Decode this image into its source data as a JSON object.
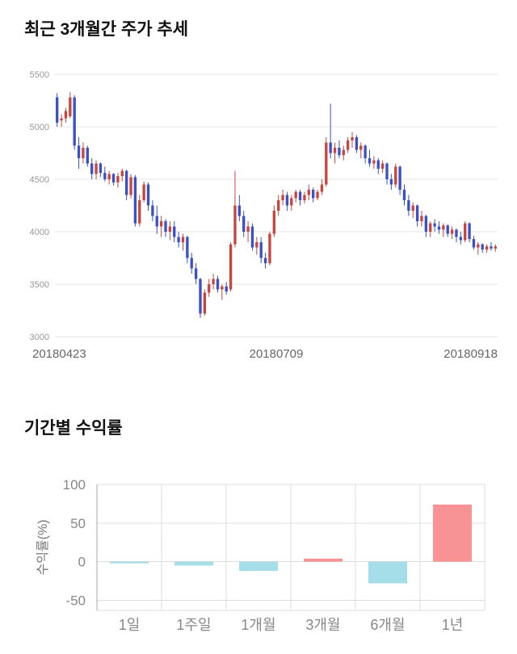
{
  "chart_data": [
    {
      "type": "candlestick",
      "title": "최근 3개월간 주가 추세",
      "x_labels": [
        "20180423",
        "20180709",
        "20180918"
      ],
      "y_ticks": [
        5500,
        5000,
        4500,
        4000,
        3500,
        3000
      ],
      "ylim": [
        3000,
        5500
      ],
      "legend": "none",
      "grid": "horizontal",
      "colors": {
        "up": "#c8453f",
        "down": "#3a50c6",
        "grid": "#e4e4e4",
        "tick_label": "#999999",
        "x_label": "#666666"
      },
      "candles": [
        [
          5280,
          5320,
          5000,
          5040
        ],
        [
          5060,
          5120,
          5000,
          5080
        ],
        [
          5080,
          5180,
          5040,
          5150
        ],
        [
          5100,
          5330,
          5080,
          5280
        ],
        [
          5280,
          5300,
          4780,
          4820
        ],
        [
          4820,
          4900,
          4600,
          4700
        ],
        [
          4700,
          4850,
          4650,
          4800
        ],
        [
          4800,
          4820,
          4620,
          4650
        ],
        [
          4650,
          4700,
          4500,
          4550
        ],
        [
          4550,
          4680,
          4500,
          4650
        ],
        [
          4650,
          4660,
          4520,
          4560
        ],
        [
          4560,
          4620,
          4480,
          4500
        ],
        [
          4500,
          4580,
          4450,
          4550
        ],
        [
          4550,
          4560,
          4440,
          4470
        ],
        [
          4470,
          4560,
          4420,
          4530
        ],
        [
          4530,
          4600,
          4480,
          4580
        ],
        [
          4580,
          4590,
          4300,
          4350
        ],
        [
          4350,
          4550,
          4320,
          4520
        ],
        [
          4520,
          4540,
          4050,
          4080
        ],
        [
          4080,
          4350,
          4050,
          4300
        ],
        [
          4300,
          4480,
          4280,
          4450
        ],
        [
          4450,
          4470,
          4200,
          4250
        ],
        [
          4250,
          4300,
          4100,
          4150
        ],
        [
          4150,
          4250,
          3980,
          4050
        ],
        [
          4050,
          4150,
          3950,
          4100
        ],
        [
          4100,
          4120,
          3950,
          4000
        ],
        [
          4000,
          4100,
          3920,
          4050
        ],
        [
          4050,
          4100,
          3900,
          3950
        ],
        [
          3950,
          4000,
          3850,
          3900
        ],
        [
          3900,
          3980,
          3820,
          3950
        ],
        [
          3950,
          3960,
          3700,
          3750
        ],
        [
          3750,
          3800,
          3600,
          3650
        ],
        [
          3650,
          3700,
          3500,
          3550
        ],
        [
          3550,
          3560,
          3180,
          3220
        ],
        [
          3220,
          3450,
          3200,
          3420
        ],
        [
          3420,
          3550,
          3380,
          3500
        ],
        [
          3500,
          3600,
          3450,
          3550
        ],
        [
          3550,
          3580,
          3420,
          3450
        ],
        [
          3450,
          3500,
          3350,
          3480
        ],
        [
          3480,
          3520,
          3400,
          3430
        ],
        [
          3450,
          3900,
          3430,
          3880
        ],
        [
          3880,
          4580,
          3850,
          4250
        ],
        [
          4250,
          4350,
          4100,
          4150
        ],
        [
          4150,
          4200,
          3950,
          4000
        ],
        [
          4000,
          4100,
          3900,
          4050
        ],
        [
          4050,
          4080,
          3820,
          3850
        ],
        [
          3850,
          3950,
          3780,
          3900
        ],
        [
          3900,
          3950,
          3700,
          3750
        ],
        [
          3750,
          3800,
          3650,
          3700
        ],
        [
          3700,
          4000,
          3680,
          3980
        ],
        [
          3980,
          4250,
          3950,
          4200
        ],
        [
          4200,
          4350,
          4150,
          4300
        ],
        [
          4300,
          4400,
          4250,
          4350
        ],
        [
          4350,
          4380,
          4200,
          4250
        ],
        [
          4250,
          4350,
          4200,
          4320
        ],
        [
          4320,
          4400,
          4280,
          4380
        ],
        [
          4380,
          4400,
          4250,
          4300
        ],
        [
          4300,
          4380,
          4270,
          4350
        ],
        [
          4350,
          4450,
          4300,
          4400
        ],
        [
          4400,
          4420,
          4280,
          4320
        ],
        [
          4320,
          4400,
          4300,
          4380
        ],
        [
          4380,
          4500,
          4350,
          4450
        ],
        [
          4450,
          4900,
          4430,
          4850
        ],
        [
          4850,
          5220,
          4700,
          4750
        ],
        [
          4750,
          4850,
          4650,
          4800
        ],
        [
          4800,
          4870,
          4700,
          4730
        ],
        [
          4730,
          4820,
          4680,
          4780
        ],
        [
          4780,
          4900,
          4750,
          4870
        ],
        [
          4870,
          4950,
          4800,
          4900
        ],
        [
          4900,
          4920,
          4750,
          4780
        ],
        [
          4780,
          4850,
          4700,
          4820
        ],
        [
          4820,
          4830,
          4650,
          4700
        ],
        [
          4700,
          4780,
          4620,
          4650
        ],
        [
          4650,
          4720,
          4600,
          4680
        ],
        [
          4680,
          4700,
          4550,
          4600
        ],
        [
          4600,
          4680,
          4560,
          4650
        ],
        [
          4650,
          4660,
          4450,
          4500
        ],
        [
          4500,
          4550,
          4400,
          4450
        ],
        [
          4450,
          4650,
          4420,
          4620
        ],
        [
          4620,
          4630,
          4350,
          4400
        ],
        [
          4400,
          4450,
          4250,
          4300
        ],
        [
          4300,
          4350,
          4150,
          4200
        ],
        [
          4200,
          4280,
          4130,
          4250
        ],
        [
          4250,
          4260,
          4050,
          4100
        ],
        [
          4100,
          4200,
          4050,
          4150
        ],
        [
          4150,
          4160,
          3950,
          4000
        ],
        [
          4000,
          4100,
          3950,
          4080
        ],
        [
          4080,
          4120,
          4000,
          4050
        ],
        [
          4050,
          4100,
          3980,
          4020
        ],
        [
          4020,
          4080,
          3950,
          4060
        ],
        [
          4060,
          4070,
          3950,
          3980
        ],
        [
          3980,
          4050,
          3930,
          4020
        ],
        [
          4020,
          4030,
          3900,
          3950
        ],
        [
          3950,
          4000,
          3880,
          3920
        ],
        [
          3920,
          4100,
          3900,
          4080
        ],
        [
          4080,
          4090,
          3900,
          3930
        ],
        [
          3930,
          3960,
          3830,
          3850
        ],
        [
          3850,
          3900,
          3780,
          3880
        ],
        [
          3880,
          3890,
          3800,
          3830
        ],
        [
          3830,
          3880,
          3800,
          3860
        ],
        [
          3860,
          3900,
          3820,
          3840
        ],
        [
          3840,
          3880,
          3810,
          3860
        ]
      ]
    },
    {
      "type": "bar",
      "title": "기간별 수익률",
      "ylabel": "수익률(%)",
      "categories": [
        "1일",
        "1주일",
        "1개월",
        "3개월",
        "6개월",
        "1년"
      ],
      "values": [
        -2,
        -5,
        -12,
        4,
        -28,
        74
      ],
      "y_ticks": [
        100,
        50,
        0,
        -50
      ],
      "ylim": [
        -63,
        100
      ],
      "legend": "none",
      "grid": "both",
      "colors": {
        "positive": "#f79394",
        "negative": "#a5dde9",
        "grid": "#dddddd",
        "axis": "#aaaaaa",
        "tick_label": "#888888",
        "category_label": "#888888",
        "ylabel": "#777777"
      }
    }
  ]
}
